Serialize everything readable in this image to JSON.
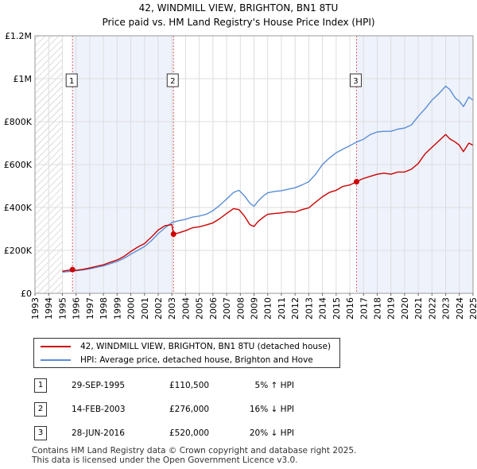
{
  "chart_data": {
    "type": "line",
    "title": "42, WINDMILL VIEW, BRIGHTON, BN1 8TU",
    "subtitle": "Price paid vs. HM Land Registry's House Price Index (HPI)",
    "xlim": [
      1993,
      2025
    ],
    "ylim": [
      0,
      1200000
    ],
    "x_ticks": [
      "1993",
      "1994",
      "1995",
      "1996",
      "1997",
      "1998",
      "1999",
      "2000",
      "2001",
      "2002",
      "2003",
      "2004",
      "2005",
      "2006",
      "2007",
      "2008",
      "2009",
      "2010",
      "2011",
      "2012",
      "2013",
      "2014",
      "2015",
      "2016",
      "2017",
      "2018",
      "2019",
      "2020",
      "2021",
      "2022",
      "2023",
      "2024",
      "2025"
    ],
    "y_ticks": [
      {
        "value": 0,
        "label": "£0"
      },
      {
        "value": 200000,
        "label": "£200K"
      },
      {
        "value": 400000,
        "label": "£400K"
      },
      {
        "value": 600000,
        "label": "£600K"
      },
      {
        "value": 800000,
        "label": "£800K"
      },
      {
        "value": 1000000,
        "label": "£1M"
      },
      {
        "value": 1200000,
        "label": "£1.2M"
      }
    ],
    "hatched_before": 1995.0,
    "series": [
      {
        "name": "42, WINDMILL VIEW, BRIGHTON, BN1 8TU (detached house)",
        "color": "#cc0000",
        "x": [
          1995.0,
          1995.74,
          1996.0,
          1996.5,
          1997.0,
          1997.5,
          1998.0,
          1998.5,
          1999.0,
          1999.5,
          2000.0,
          2000.5,
          2001.0,
          2001.5,
          2002.0,
          2002.5,
          2003.0,
          2003.12,
          2003.5,
          2004.0,
          2004.5,
          2005.0,
          2005.5,
          2006.0,
          2006.5,
          2007.0,
          2007.5,
          2007.9,
          2008.3,
          2008.7,
          2009.0,
          2009.3,
          2009.7,
          2010.0,
          2010.5,
          2011.0,
          2011.5,
          2012.0,
          2012.5,
          2013.0,
          2013.5,
          2014.0,
          2014.5,
          2015.0,
          2015.5,
          2016.0,
          2016.49,
          2016.8,
          2017.0,
          2017.5,
          2018.0,
          2018.5,
          2019.0,
          2019.5,
          2020.0,
          2020.5,
          2021.0,
          2021.5,
          2022.0,
          2022.5,
          2023.0,
          2023.3,
          2023.7,
          2024.0,
          2024.3,
          2024.7,
          2025.0
        ],
        "y": [
          103000,
          110500,
          107000,
          112000,
          118000,
          126000,
          133000,
          145000,
          155000,
          172000,
          195000,
          215000,
          232000,
          262000,
          295000,
          315000,
          320000,
          276000,
          282000,
          292000,
          305000,
          310000,
          318000,
          328000,
          348000,
          372000,
          395000,
          390000,
          360000,
          320000,
          312000,
          335000,
          355000,
          368000,
          372000,
          375000,
          380000,
          378000,
          390000,
          398000,
          425000,
          450000,
          470000,
          480000,
          498000,
          505000,
          520000,
          530000,
          535000,
          545000,
          555000,
          560000,
          555000,
          565000,
          565000,
          578000,
          605000,
          650000,
          680000,
          710000,
          740000,
          720000,
          705000,
          690000,
          660000,
          700000,
          690000
        ]
      },
      {
        "name": "HPI: Average price, detached house, Brighton and Hove",
        "color": "#5b8dd6",
        "x": [
          1995.0,
          1995.5,
          1996.0,
          1996.5,
          1997.0,
          1997.5,
          1998.0,
          1998.5,
          1999.0,
          1999.5,
          2000.0,
          2000.5,
          2001.0,
          2001.5,
          2002.0,
          2002.5,
          2003.0,
          2003.5,
          2004.0,
          2004.5,
          2005.0,
          2005.5,
          2006.0,
          2006.5,
          2007.0,
          2007.5,
          2007.9,
          2008.3,
          2008.7,
          2009.0,
          2009.3,
          2009.7,
          2010.0,
          2010.5,
          2011.0,
          2011.5,
          2012.0,
          2012.5,
          2013.0,
          2013.5,
          2014.0,
          2014.5,
          2015.0,
          2015.5,
          2016.0,
          2016.5,
          2017.0,
          2017.5,
          2018.0,
          2018.5,
          2019.0,
          2019.5,
          2020.0,
          2020.5,
          2021.0,
          2021.5,
          2022.0,
          2022.5,
          2023.0,
          2023.3,
          2023.7,
          2024.0,
          2024.3,
          2024.7,
          2025.0
        ],
        "y": [
          99000,
          102000,
          105000,
          109000,
          114000,
          121000,
          128000,
          138000,
          148000,
          163000,
          182000,
          200000,
          218000,
          245000,
          278000,
          305000,
          330000,
          338000,
          345000,
          355000,
          360000,
          368000,
          385000,
          410000,
          440000,
          470000,
          480000,
          455000,
          420000,
          405000,
          430000,
          455000,
          468000,
          475000,
          478000,
          485000,
          492000,
          505000,
          520000,
          555000,
          600000,
          630000,
          655000,
          672000,
          688000,
          705000,
          718000,
          740000,
          752000,
          755000,
          755000,
          765000,
          770000,
          785000,
          825000,
          860000,
          900000,
          930000,
          965000,
          950000,
          910000,
          895000,
          870000,
          915000,
          900000
        ]
      }
    ],
    "sales": [
      {
        "num": "1",
        "x": 1995.74,
        "y": 110500
      },
      {
        "num": "2",
        "x": 2003.12,
        "y": 276000
      },
      {
        "num": "3",
        "x": 2016.49,
        "y": 520000
      }
    ]
  },
  "legend": {
    "items": [
      {
        "label": "42, WINDMILL VIEW, BRIGHTON, BN1 8TU (detached house)",
        "color": "#cc0000"
      },
      {
        "label": "HPI: Average price, detached house, Brighton and Hove",
        "color": "#5b8dd6"
      }
    ]
  },
  "sales_table": [
    {
      "num": "1",
      "date": "29-SEP-1995",
      "price": "£110,500",
      "hpi": "5% ↑ HPI"
    },
    {
      "num": "2",
      "date": "14-FEB-2003",
      "price": "£276,000",
      "hpi": "16% ↓ HPI"
    },
    {
      "num": "3",
      "date": "28-JUN-2016",
      "price": "£520,000",
      "hpi": "20% ↓ HPI"
    }
  ],
  "footer": {
    "line1": "Contains HM Land Registry data © Crown copyright and database right 2025.",
    "line2": "This data is licensed under the Open Government Licence v3.0."
  }
}
